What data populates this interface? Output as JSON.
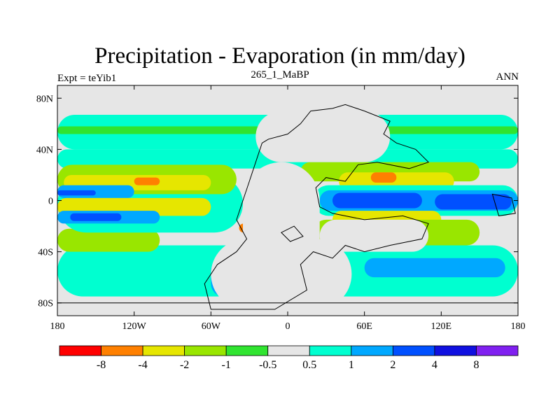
{
  "chart_data": {
    "type": "heatmap",
    "title": "Precipitation - Evaporation (in mm/day)",
    "subtitle": "265_1_MaBP",
    "left_label": "Expt = teYib1",
    "right_label": "ANN",
    "x_axis": {
      "range": [
        -180,
        180
      ],
      "ticks": [
        {
          "value": -180,
          "label": "180"
        },
        {
          "value": -120,
          "label": "120W"
        },
        {
          "value": -60,
          "label": "60W"
        },
        {
          "value": 0,
          "label": "0"
        },
        {
          "value": 60,
          "label": "60E"
        },
        {
          "value": 120,
          "label": "120E"
        },
        {
          "value": 180,
          "label": "180"
        }
      ]
    },
    "y_axis": {
      "range": [
        -90,
        90
      ],
      "ticks": [
        {
          "value": 80,
          "label": "80N"
        },
        {
          "value": 40,
          "label": "40N"
        },
        {
          "value": 0,
          "label": "0"
        },
        {
          "value": -40,
          "label": "40S"
        },
        {
          "value": -80,
          "label": "80S"
        }
      ]
    },
    "colorbar": {
      "colors": [
        "#ff0000",
        "#ff8000",
        "#e6e600",
        "#99e600",
        "#30e430",
        "#e6e6e6",
        "#00ffd0",
        "#00a8ff",
        "#0050ff",
        "#1010e0",
        "#8020f0"
      ],
      "labels": [
        "-8",
        "-4",
        "-2",
        "-1",
        "-0.5",
        "0.5",
        "1",
        "2",
        "4",
        "8"
      ]
    },
    "fields": [
      {
        "name": "north-cyan-belt",
        "color": "#00ffd0",
        "lon": [
          -180,
          180
        ],
        "lat": [
          40,
          67
        ]
      },
      {
        "name": "north-green-belt",
        "color": "#30e430",
        "lon": [
          -180,
          180
        ],
        "lat": [
          52,
          58
        ]
      },
      {
        "name": "north-cyan-band",
        "color": "#00ffd0",
        "lon": [
          -180,
          180
        ],
        "lat": [
          25,
          40
        ]
      },
      {
        "name": "south-cyan-belt",
        "color": "#00ffd0",
        "lon": [
          -180,
          180
        ],
        "lat": [
          -75,
          -35
        ]
      },
      {
        "name": "pac-south-green",
        "color": "#99e600",
        "lon": [
          -180,
          -100
        ],
        "lat": [
          -40,
          -22
        ]
      },
      {
        "name": "pac-equ-cyan",
        "color": "#00ffd0",
        "lon": [
          -180,
          -35
        ],
        "lat": [
          -25,
          20
        ]
      },
      {
        "name": "pac-north-green",
        "color": "#99e600",
        "lon": [
          -180,
          -40
        ],
        "lat": [
          5,
          28
        ]
      },
      {
        "name": "pac-north-yellow",
        "color": "#e6e600",
        "lon": [
          -175,
          -60
        ],
        "lat": [
          8,
          20
        ]
      },
      {
        "name": "pac-north-orange",
        "color": "#ff8000",
        "lon": [
          -120,
          -100
        ],
        "lat": [
          12,
          18
        ]
      },
      {
        "name": "pac-equ-blue",
        "color": "#00a8ff",
        "lon": [
          -180,
          -120
        ],
        "lat": [
          2,
          12
        ]
      },
      {
        "name": "pac-equ-darkblue",
        "color": "#0050ff",
        "lon": [
          -180,
          -150
        ],
        "lat": [
          4,
          8
        ]
      },
      {
        "name": "pac-south-yellow",
        "color": "#e6e600",
        "lon": [
          -180,
          -60
        ],
        "lat": [
          -12,
          2
        ]
      },
      {
        "name": "pac-south-blue",
        "color": "#00a8ff",
        "lon": [
          -180,
          -100
        ],
        "lat": [
          -18,
          -8
        ]
      },
      {
        "name": "pac-south-darkblue",
        "color": "#0050ff",
        "lon": [
          -170,
          -130
        ],
        "lat": [
          -16,
          -10
        ]
      },
      {
        "name": "tethys-north-green",
        "color": "#99e600",
        "lon": [
          10,
          150
        ],
        "lat": [
          15,
          30
        ]
      },
      {
        "name": "tethys-north-yellow",
        "color": "#e6e600",
        "lon": [
          40,
          130
        ],
        "lat": [
          8,
          22
        ]
      },
      {
        "name": "tethys-orange",
        "color": "#ff8000",
        "lon": [
          65,
          85
        ],
        "lat": [
          14,
          22
        ]
      },
      {
        "name": "tethys-cyan",
        "color": "#00ffd0",
        "lon": [
          20,
          180
        ],
        "lat": [
          -12,
          12
        ]
      },
      {
        "name": "tethys-blue",
        "color": "#00a8ff",
        "lon": [
          25,
          180
        ],
        "lat": [
          -8,
          8
        ]
      },
      {
        "name": "tethys-darkblue",
        "color": "#0050ff",
        "lon": [
          35,
          105
        ],
        "lat": [
          -6,
          6
        ]
      },
      {
        "name": "tethys-darkblue-east",
        "color": "#0050ff",
        "lon": [
          115,
          175
        ],
        "lat": [
          -7,
          5
        ]
      },
      {
        "name": "tethys-south-yellow",
        "color": "#e6e600",
        "lon": [
          35,
          120
        ],
        "lat": [
          -22,
          -8
        ]
      },
      {
        "name": "tethys-south-green",
        "color": "#99e600",
        "lon": [
          20,
          150
        ],
        "lat": [
          -35,
          -15
        ]
      },
      {
        "name": "west-pangea-orange",
        "color": "#ff8000",
        "lon": [
          -38,
          -25
        ],
        "lat": [
          -25,
          -18
        ]
      },
      {
        "name": "inland-orange-ring",
        "color": "#ff8000",
        "lon": [
          -5,
          10
        ],
        "lat": [
          -30,
          -20
        ]
      },
      {
        "name": "south-blue-patch",
        "color": "#00a8ff",
        "lon": [
          -60,
          -40
        ],
        "lat": [
          -75,
          -45
        ]
      },
      {
        "name": "south-darkblue-patch",
        "color": "#1010e0",
        "lon": [
          -55,
          -45
        ],
        "lat": [
          -70,
          -60
        ]
      },
      {
        "name": "far-south-blue",
        "color": "#00a8ff",
        "lon": [
          60,
          170
        ],
        "lat": [
          -60,
          -45
        ]
      }
    ],
    "land": [
      {
        "name": "pangea-north",
        "color": "#e6e6e6",
        "lon": [
          -25,
          80
        ],
        "lat": [
          30,
          70
        ]
      },
      {
        "name": "pangea-central",
        "color": "#e6e6e6",
        "lon": [
          -35,
          25
        ],
        "lat": [
          -60,
          30
        ]
      },
      {
        "name": "pangea-south",
        "color": "#e6e6e6",
        "lon": [
          -60,
          50
        ],
        "lat": [
          -85,
          -30
        ]
      },
      {
        "name": "pangea-east",
        "color": "#e6e6e6",
        "lon": [
          25,
          110
        ],
        "lat": [
          -40,
          -15
        ]
      },
      {
        "name": "north-polar-cap",
        "color": "#e6e6e6",
        "lon": [
          -180,
          180
        ],
        "lat": [
          67,
          90
        ]
      },
      {
        "name": "south-polar-cap",
        "color": "#e6e6e6",
        "lon": [
          -180,
          180
        ],
        "lat": [
          -90,
          -75
        ]
      }
    ]
  }
}
